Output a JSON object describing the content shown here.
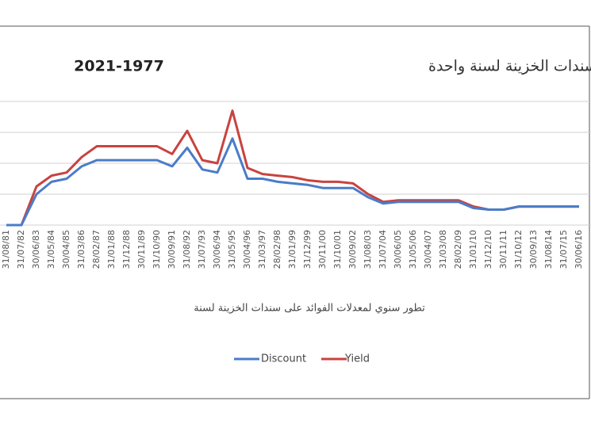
{
  "chart_data": {
    "type": "line",
    "title": "معدل الفوائد على سندات الخزينة لسنة واحدة",
    "title_years": "2021-1977",
    "x_label": "تطور سنوي لمعدلات الفوائد على سندات الخزينة لسنة",
    "categories": [
      "31/08/81",
      "31/07/82",
      "30/06/83",
      "31/05/84",
      "30/04/85",
      "31/03/86",
      "28/02/87",
      "31/01/88",
      "31/12/88",
      "30/11/89",
      "31/10/90",
      "30/09/91",
      "31/08/92",
      "31/07/93",
      "30/06/94",
      "31/05/95",
      "30/04/96",
      "31/03/97",
      "28/02/98",
      "31/01/99",
      "31/12/99",
      "30/11/00",
      "31/10/01",
      "30/09/02",
      "31/08/03",
      "31/07/04",
      "30/06/05",
      "31/05/06",
      "30/04/07",
      "31/03/08",
      "28/02/09",
      "31/01/10",
      "31/12/10",
      "30/11/11",
      "31/10/12",
      "30/09/13",
      "31/08/14",
      "31/07/15",
      "30/06/16"
    ],
    "series": [
      {
        "name": "Discount",
        "color": "#4a7cc9",
        "values": [
          0,
          0,
          10,
          14,
          15,
          19,
          21,
          21,
          21,
          21,
          21,
          19,
          25,
          18,
          17,
          28,
          15,
          15,
          14,
          13.5,
          13,
          12,
          12,
          12,
          9,
          7,
          7.5,
          7.5,
          7.5,
          7.5,
          7.5,
          5.5,
          5,
          5,
          6,
          6,
          6,
          6,
          6
        ]
      },
      {
        "name": "Yield",
        "color": "#c8433f",
        "values": [
          0,
          0,
          12.5,
          16,
          17,
          22,
          25.5,
          25.5,
          25.5,
          25.5,
          25.5,
          23,
          30.5,
          21,
          20,
          37,
          18.5,
          16.5,
          16,
          15.5,
          14.5,
          14,
          14,
          13.5,
          10,
          7.5,
          8,
          8,
          8,
          8,
          8,
          6,
          5,
          5,
          6,
          6,
          6,
          6,
          6
        ]
      }
    ],
    "ylim": [
      0,
      40
    ],
    "yticks": [
      0,
      10,
      20,
      30,
      40
    ],
    "grid": true,
    "legend": "bottom"
  }
}
